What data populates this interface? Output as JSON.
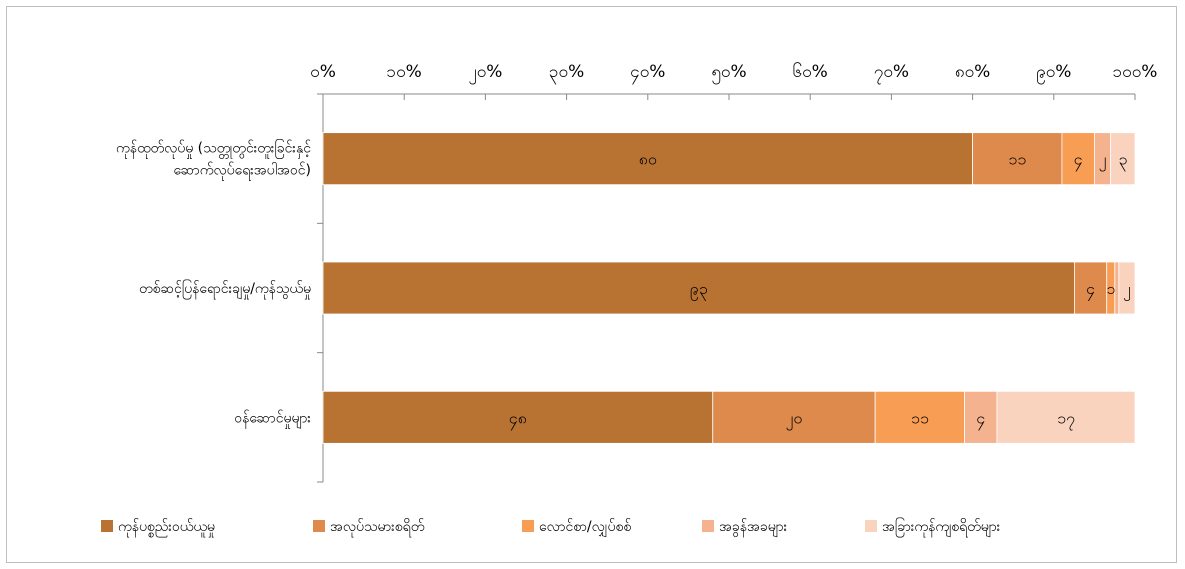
{
  "chart_data": {
    "type": "bar",
    "orientation": "horizontal",
    "stacked": "percent",
    "x_tick_labels": [
      "၀%",
      "၁၀%",
      "၂၀%",
      "၃၀%",
      "၄၀%",
      "၅၀%",
      "၆၀%",
      "၇၀%",
      "၈၀%",
      "၉၀%",
      "၁၀၀%"
    ],
    "xlim": [
      0,
      100
    ],
    "grid": false,
    "legend_position": "bottom",
    "categories": [
      {
        "lines": [
          "ကုန်ထုတ်လုပ်မှု (သတ္တုတွင်းတူးခြင်းနှင့်",
          "ဆောက်လုပ်ရေးအပါအဝင်)"
        ]
      },
      {
        "lines": [
          "တစ်ဆင့်ပြန်ရောင်းချမှု/ကုန်သွယ်မှု"
        ]
      },
      {
        "lines": [
          "ဝန်ဆောင်မှုများ"
        ]
      }
    ],
    "series": [
      {
        "name": "ကုန်ပစ္စည်းဝယ်ယူမှု",
        "color": "#b87333",
        "values": [
          80,
          93,
          48
        ],
        "labels": [
          "၈၀",
          "၉၃",
          "၄၈"
        ]
      },
      {
        "name": "အလုပ်သမားစရိတ်",
        "color": "#dd8a4c",
        "values": [
          11,
          4,
          20
        ],
        "labels": [
          "၁၁",
          "၄",
          "၂၀"
        ]
      },
      {
        "name": "လောင်စာ/လျှပ်စစ်",
        "color": "#f79d54",
        "values": [
          4,
          1,
          11
        ],
        "labels": [
          "၄",
          "၁",
          "၁၁"
        ]
      },
      {
        "name": "အခွန်အခများ",
        "color": "#f5b28e",
        "values": [
          2,
          0.5,
          4
        ],
        "labels": [
          "၂",
          "",
          "၄"
        ]
      },
      {
        "name": "အခြားကုန်ကျစရိတ်များ",
        "color": "#fad3bf",
        "values": [
          3,
          2,
          17
        ],
        "labels": [
          "၃",
          "၂",
          "၁၇"
        ]
      }
    ]
  }
}
